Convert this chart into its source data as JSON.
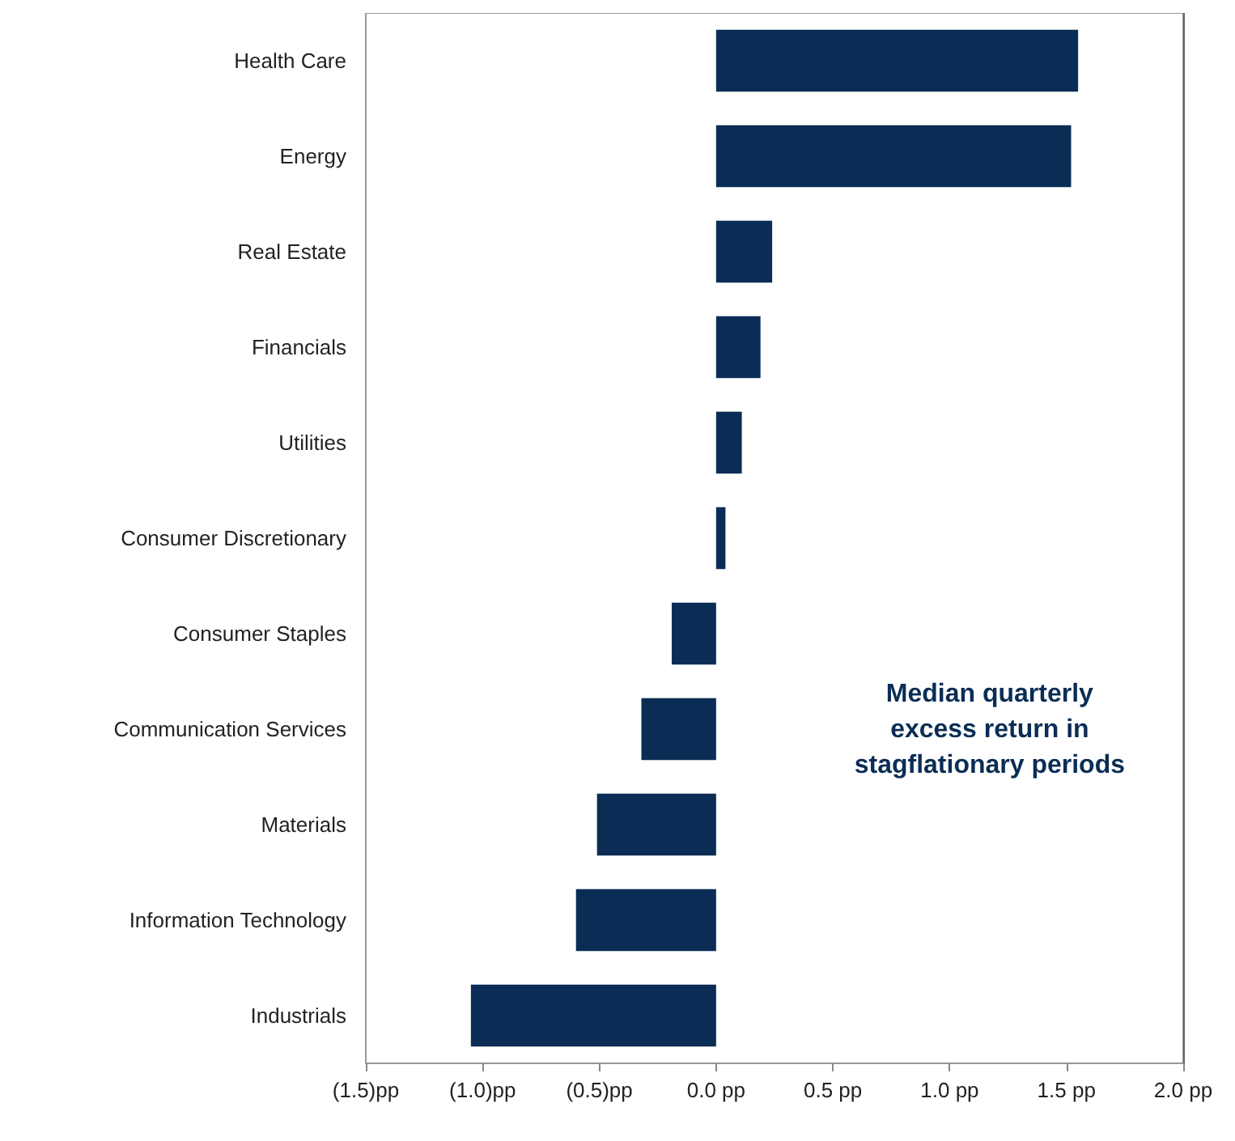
{
  "chart_data": {
    "type": "bar",
    "orientation": "horizontal",
    "categories": [
      "Health Care",
      "Energy",
      "Real Estate",
      "Financials",
      "Utilities",
      "Consumer Discretionary",
      "Consumer Staples",
      "Communication Services",
      "Materials",
      "Information Technology",
      "Industrials"
    ],
    "values": [
      1.55,
      1.52,
      0.24,
      0.19,
      0.11,
      0.04,
      -0.19,
      -0.32,
      -0.51,
      -0.6,
      -1.05
    ],
    "color": "#0b2d55",
    "xlim": [
      -1.5,
      2.0
    ],
    "xticks": [
      {
        "value": -1.5,
        "label": "(1.5)pp"
      },
      {
        "value": -1.0,
        "label": "(1.0)pp"
      },
      {
        "value": -0.5,
        "label": "(0.5)pp"
      },
      {
        "value": 0,
        "label": "0.0 pp"
      },
      {
        "value": 0.5,
        "label": "0.5 pp"
      },
      {
        "value": 1.0,
        "label": "1.0 pp"
      },
      {
        "value": 1.5,
        "label": "1.5 pp"
      },
      {
        "value": 2.0,
        "label": "2.0 pp"
      }
    ],
    "grid": false,
    "annotations": [
      "Median quarterly\nexcess return in\nstagflationary periods"
    ]
  }
}
